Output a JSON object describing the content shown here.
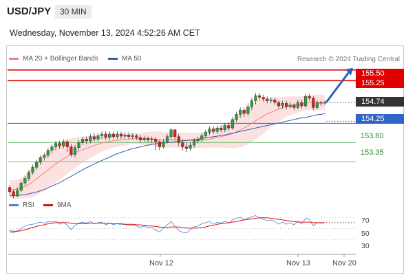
{
  "header": {
    "symbol": "USD/JPY",
    "timeframe": "30 MIN"
  },
  "datetime": "Wednesday, November 13, 2024 4:52:26 AM CET",
  "legend": {
    "bollinger": {
      "label": "MA 20 + Bollinger Bands",
      "color": "#f08080"
    },
    "ma50": {
      "label": "MA 50",
      "color": "#2f5ea8"
    },
    "rsi": {
      "label": "RSI",
      "color": "#4a7fd4"
    },
    "rsi_ma": {
      "label": "9MA",
      "color": "#e01010"
    }
  },
  "copyright": "Research © 2024 Trading Central",
  "levels": {
    "resistance": [
      {
        "label": "155.50",
        "value": 155.5
      },
      {
        "label": "155.25",
        "value": 155.25
      }
    ],
    "pivot": {
      "label": "154.25",
      "value": 154.25
    },
    "support": [
      {
        "label": "153.80",
        "value": 153.8
      },
      {
        "label": "153.35",
        "value": 153.35
      }
    ],
    "last": {
      "label": "154.74",
      "value": 154.74
    }
  },
  "x_labels": [
    "Nov 12",
    "Nov 13",
    "Nov 20"
  ],
  "rsi_ticks": [
    "70",
    "50",
    "30"
  ],
  "colors": {
    "up": "#2e9e3e",
    "down": "#d62020",
    "resistance": "#e00000",
    "pivot": "#2f64c8",
    "support": "#6cc36c",
    "arrow": "#2a62b8"
  },
  "chart_data": {
    "type": "candlestick",
    "ylim": [
      152.63,
      155.61
    ],
    "rsi_ylim": [
      15,
      85
    ],
    "candles": [
      [
        152.75,
        152.65,
        152.8,
        152.58
      ],
      [
        152.65,
        152.55,
        152.7,
        152.5
      ],
      [
        152.55,
        152.68,
        152.75,
        152.52
      ],
      [
        152.68,
        152.85,
        152.9,
        152.64
      ],
      [
        152.85,
        152.96,
        153.02,
        152.8
      ],
      [
        152.96,
        153.1,
        153.16,
        152.9
      ],
      [
        153.1,
        153.22,
        153.28,
        153.05
      ],
      [
        153.22,
        153.34,
        153.4,
        153.16
      ],
      [
        153.34,
        153.45,
        153.5,
        153.28
      ],
      [
        153.45,
        153.5,
        153.56,
        153.38
      ],
      [
        153.5,
        153.62,
        153.68,
        153.44
      ],
      [
        153.62,
        153.7,
        153.76,
        153.55
      ],
      [
        153.7,
        153.78,
        153.84,
        153.62
      ],
      [
        153.78,
        153.72,
        153.84,
        153.65
      ],
      [
        153.72,
        153.82,
        153.88,
        153.66
      ],
      [
        153.82,
        153.7,
        153.86,
        153.58
      ],
      [
        153.7,
        153.52,
        153.76,
        153.46
      ],
      [
        153.52,
        153.68,
        153.74,
        153.46
      ],
      [
        153.68,
        153.8,
        153.86,
        153.62
      ],
      [
        153.8,
        153.88,
        153.94,
        153.74
      ],
      [
        153.88,
        153.84,
        153.94,
        153.76
      ],
      [
        153.84,
        153.94,
        154.0,
        153.78
      ],
      [
        153.94,
        153.88,
        154.02,
        153.82
      ],
      [
        153.88,
        153.96,
        154.02,
        153.82
      ],
      [
        153.96,
        154.0,
        154.06,
        153.88
      ],
      [
        154.0,
        153.92,
        154.06,
        153.86
      ],
      [
        153.92,
        154.0,
        154.06,
        153.86
      ],
      [
        154.0,
        153.94,
        154.06,
        153.88
      ],
      [
        153.94,
        154.0,
        154.06,
        153.88
      ],
      [
        154.0,
        153.95,
        154.05,
        153.89
      ],
      [
        153.95,
        153.98,
        154.04,
        153.89
      ],
      [
        153.98,
        153.94,
        154.04,
        153.88
      ],
      [
        153.94,
        153.96,
        154.02,
        153.88
      ],
      [
        153.96,
        153.92,
        154.0,
        153.86
      ],
      [
        153.92,
        153.86,
        153.98,
        153.8
      ],
      [
        153.86,
        153.9,
        153.96,
        153.82
      ],
      [
        153.9,
        153.86,
        153.94,
        153.8
      ],
      [
        153.86,
        153.88,
        153.94,
        153.8
      ],
      [
        153.88,
        153.82,
        153.92,
        153.62
      ],
      [
        153.82,
        153.7,
        153.86,
        153.62
      ],
      [
        153.7,
        153.82,
        153.88,
        153.66
      ],
      [
        153.82,
        153.94,
        154.0,
        153.78
      ],
      [
        153.94,
        154.1,
        154.14,
        153.86
      ],
      [
        154.1,
        153.94,
        154.12,
        153.86
      ],
      [
        153.94,
        153.8,
        154.0,
        153.72
      ],
      [
        153.8,
        153.7,
        153.86,
        153.62
      ],
      [
        153.7,
        153.66,
        153.8,
        153.58
      ],
      [
        153.66,
        153.74,
        153.8,
        153.6
      ],
      [
        153.74,
        153.84,
        153.9,
        153.68
      ],
      [
        153.84,
        153.88,
        153.94,
        153.78
      ],
      [
        153.88,
        153.96,
        154.02,
        153.82
      ],
      [
        153.96,
        154.04,
        154.1,
        153.9
      ],
      [
        154.04,
        154.12,
        154.18,
        153.98
      ],
      [
        154.12,
        154.06,
        154.18,
        154.0
      ],
      [
        154.06,
        154.14,
        154.2,
        154.0
      ],
      [
        154.14,
        154.1,
        154.2,
        154.04
      ],
      [
        154.1,
        154.2,
        154.26,
        154.04
      ],
      [
        154.2,
        154.14,
        154.26,
        154.08
      ],
      [
        154.14,
        154.34,
        154.4,
        154.1
      ],
      [
        154.34,
        154.46,
        154.52,
        154.28
      ],
      [
        154.46,
        154.56,
        154.62,
        154.38
      ],
      [
        154.56,
        154.48,
        154.62,
        154.4
      ],
      [
        154.48,
        154.64,
        154.72,
        154.42
      ],
      [
        154.64,
        154.78,
        154.84,
        154.56
      ],
      [
        154.78,
        154.9,
        154.96,
        154.7
      ],
      [
        154.9,
        154.86,
        154.96,
        154.78
      ],
      [
        154.86,
        154.82,
        154.92,
        154.76
      ],
      [
        154.82,
        154.78,
        154.88,
        154.72
      ],
      [
        154.78,
        154.8,
        154.86,
        154.72
      ],
      [
        154.8,
        154.74,
        154.84,
        154.68
      ],
      [
        154.74,
        154.66,
        154.78,
        154.6
      ],
      [
        154.66,
        154.72,
        154.78,
        154.6
      ],
      [
        154.72,
        154.64,
        154.78,
        154.58
      ],
      [
        154.64,
        154.68,
        154.74,
        154.6
      ],
      [
        154.68,
        154.62,
        154.72,
        154.56
      ],
      [
        154.62,
        154.74,
        154.8,
        154.58
      ],
      [
        154.74,
        154.66,
        154.8,
        154.6
      ],
      [
        154.66,
        154.88,
        154.94,
        154.62
      ],
      [
        154.88,
        154.84,
        154.94,
        154.78
      ],
      [
        154.84,
        154.62,
        154.88,
        154.56
      ],
      [
        154.62,
        154.74,
        154.8,
        154.58
      ],
      [
        154.74,
        154.72,
        154.78,
        154.66
      ],
      [
        154.72,
        154.74,
        154.78,
        154.68
      ]
    ],
    "ma20": [
      152.7,
      152.7,
      152.71,
      152.73,
      152.77,
      152.82,
      152.88,
      152.95,
      153.02,
      153.09,
      153.16,
      153.23,
      153.3,
      153.36,
      153.42,
      153.47,
      153.52,
      153.56,
      153.6,
      153.63,
      153.66,
      153.7,
      153.73,
      153.76,
      153.79,
      153.81,
      153.83,
      153.84,
      153.85,
      153.86,
      153.87,
      153.88,
      153.89,
      153.89,
      153.89,
      153.89,
      153.89,
      153.89,
      153.88,
      153.87,
      153.86,
      153.86,
      153.86,
      153.86,
      153.86,
      153.86,
      153.85,
      153.85,
      153.85,
      153.85,
      153.86,
      153.87,
      153.88,
      153.9,
      153.92,
      153.94,
      153.96,
      153.98,
      154.01,
      154.05,
      154.09,
      154.14,
      154.19,
      154.25,
      154.31,
      154.37,
      154.42,
      154.47,
      154.51,
      154.55,
      154.58,
      154.61,
      154.64,
      154.66,
      154.68,
      154.69,
      154.71,
      154.73,
      154.74,
      154.74,
      154.74,
      154.74,
      154.74
    ],
    "band_width": [
      0.22,
      0.22,
      0.22,
      0.24,
      0.27,
      0.31,
      0.35,
      0.38,
      0.4,
      0.42,
      0.43,
      0.44,
      0.44,
      0.43,
      0.42,
      0.4,
      0.38,
      0.36,
      0.33,
      0.3,
      0.28,
      0.26,
      0.24,
      0.22,
      0.2,
      0.18,
      0.17,
      0.16,
      0.15,
      0.14,
      0.14,
      0.13,
      0.13,
      0.13,
      0.14,
      0.15,
      0.16,
      0.17,
      0.18,
      0.18,
      0.18,
      0.18,
      0.18,
      0.18,
      0.18,
      0.18,
      0.18,
      0.18,
      0.18,
      0.18,
      0.18,
      0.19,
      0.2,
      0.22,
      0.24,
      0.26,
      0.28,
      0.31,
      0.34,
      0.37,
      0.4,
      0.42,
      0.43,
      0.44,
      0.44,
      0.43,
      0.41,
      0.38,
      0.35,
      0.32,
      0.29,
      0.26,
      0.24,
      0.22,
      0.2,
      0.19,
      0.18,
      0.18,
      0.18,
      0.18,
      0.18,
      0.18,
      0.18
    ],
    "ma50": [
      152.55,
      152.56,
      152.56,
      152.57,
      152.58,
      152.6,
      152.62,
      152.64,
      152.67,
      152.7,
      152.74,
      152.78,
      152.82,
      152.86,
      152.91,
      152.96,
      153.01,
      153.06,
      153.11,
      153.16,
      153.21,
      153.25,
      153.3,
      153.34,
      153.38,
      153.42,
      153.46,
      153.5,
      153.54,
      153.57,
      153.6,
      153.63,
      153.66,
      153.68,
      153.7,
      153.72,
      153.74,
      153.76,
      153.77,
      153.78,
      153.79,
      153.8,
      153.81,
      153.82,
      153.83,
      153.84,
      153.85,
      153.86,
      153.87,
      153.88,
      153.9,
      153.91,
      153.92,
      153.94,
      153.95,
      153.97,
      153.98,
      154.0,
      154.02,
      154.04,
      154.06,
      154.08,
      154.1,
      154.12,
      154.14,
      154.16,
      154.18,
      154.2,
      154.22,
      154.24,
      154.26,
      154.28,
      154.3,
      154.32,
      154.34,
      154.36,
      154.38,
      154.39,
      154.41,
      154.43,
      154.45,
      154.46,
      154.48
    ],
    "rsi": [
      44,
      42,
      46,
      50,
      55,
      57,
      58,
      60,
      62,
      60,
      63,
      62,
      64,
      58,
      62,
      56,
      48,
      56,
      60,
      62,
      60,
      63,
      59,
      61,
      62,
      57,
      60,
      57,
      59,
      57,
      58,
      56,
      57,
      55,
      52,
      55,
      52,
      53,
      47,
      44,
      51,
      57,
      63,
      54,
      47,
      43,
      42,
      48,
      53,
      55,
      59,
      61,
      63,
      58,
      62,
      60,
      64,
      60,
      66,
      69,
      71,
      66,
      69,
      72,
      74,
      70,
      67,
      65,
      66,
      63,
      58,
      62,
      58,
      61,
      57,
      64,
      58,
      69,
      67,
      55,
      61,
      60,
      61
    ],
    "rsi_ma": [
      46,
      45,
      45,
      46,
      48,
      50,
      52,
      54,
      56,
      57,
      59,
      60,
      61,
      61,
      61,
      61,
      60,
      59,
      59,
      59,
      59,
      60,
      60,
      60,
      60,
      60,
      60,
      59,
      59,
      59,
      58,
      58,
      58,
      57,
      57,
      56,
      55,
      55,
      54,
      53,
      52,
      52,
      53,
      53,
      53,
      52,
      51,
      51,
      51,
      51,
      52,
      53,
      55,
      56,
      58,
      59,
      60,
      61,
      62,
      63,
      65,
      66,
      67,
      68,
      69,
      70,
      70,
      70,
      69,
      68,
      67,
      66,
      65,
      64,
      63,
      62,
      62,
      62,
      62,
      61,
      61,
      61,
      61
    ]
  }
}
